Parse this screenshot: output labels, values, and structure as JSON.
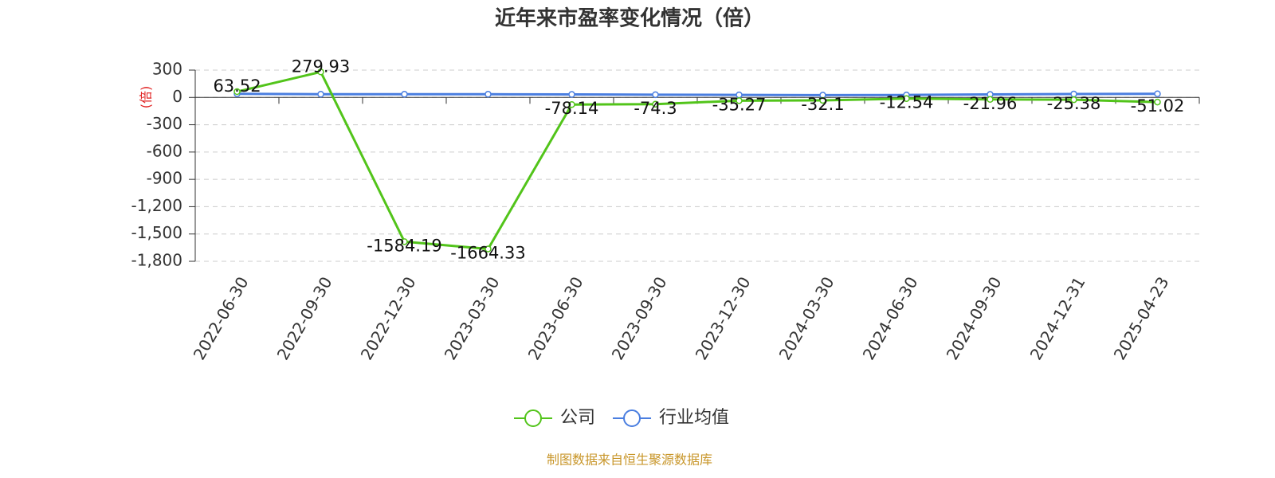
{
  "chart_data": {
    "type": "line",
    "title": "近年来市盈率变化情况（倍）",
    "y_label": "(倍)",
    "source": "制图数据来自恒生聚源数据库",
    "categories": [
      "2022-06-30",
      "2022-09-30",
      "2022-12-30",
      "2023-03-30",
      "2023-06-30",
      "2023-09-30",
      "2023-12-30",
      "2024-03-30",
      "2024-06-30",
      "2024-09-30",
      "2024-12-31",
      "2025-04-23"
    ],
    "series": [
      {
        "name": "公司",
        "color": "#52c41a",
        "values": [
          63.52,
          279.93,
          -1584.19,
          -1664.33,
          -78.14,
          -74.3,
          -35.27,
          -32.1,
          -12.54,
          -21.96,
          -25.38,
          -51.02
        ],
        "show_labels": true
      },
      {
        "name": "行业均值",
        "color": "#4a7ee0",
        "values": [
          40,
          35,
          35,
          35,
          33,
          30,
          28,
          25,
          27,
          33,
          37,
          40
        ],
        "show_labels": false
      }
    ],
    "ylim": [
      -1800,
      300
    ],
    "yticks": [
      300,
      0,
      -300,
      -600,
      -900,
      {
        "value": -1200,
        "label": "-1,200"
      },
      {
        "value": -1500,
        "label": "-1,500"
      },
      {
        "value": -1800,
        "label": "-1,800"
      }
    ],
    "grid": true
  }
}
